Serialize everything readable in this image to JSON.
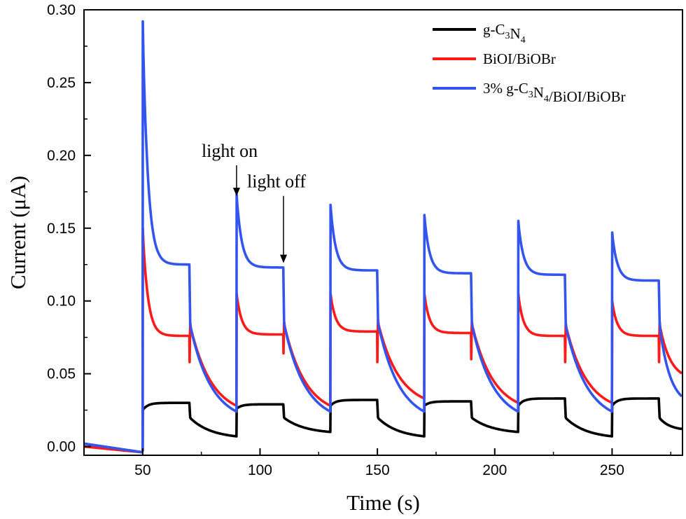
{
  "chart_data": {
    "type": "line",
    "xlabel": "Time (s)",
    "ylabel": "Current (μA)",
    "xlim": [
      25,
      280
    ],
    "ylim": [
      -0.006,
      0.3
    ],
    "xticks": [
      50,
      100,
      150,
      200,
      250
    ],
    "yticks": [
      0.0,
      0.05,
      0.1,
      0.15,
      0.2,
      0.25,
      0.3
    ],
    "ytick_labels": [
      "0.00",
      "0.05",
      "0.10",
      "0.15",
      "0.20",
      "0.25",
      "0.30"
    ],
    "legend_position": "top-right",
    "light_on_times": [
      50,
      90,
      130,
      170,
      210,
      250
    ],
    "light_off_times": [
      70,
      110,
      150,
      190,
      230,
      270
    ],
    "series": [
      {
        "name": "g-C3N4",
        "legend_parts": [
          [
            "g-C",
            ""
          ],
          [
            "3",
            "sub"
          ],
          [
            "N",
            ""
          ],
          [
            "4",
            "sub"
          ]
        ],
        "color": "#000000",
        "dark_before": 0.002,
        "jumps": [
          0.025,
          0.026,
          0.028,
          0.028,
          0.028,
          0.028
        ],
        "plateaus": [
          0.03,
          0.029,
          0.032,
          0.031,
          0.033,
          0.033
        ],
        "drops": [
          0.02,
          0.02,
          0.02,
          0.02,
          0.02,
          0.02
        ],
        "dark_ends": [
          0.007,
          0.01,
          0.007,
          0.01,
          0.007,
          0.012
        ],
        "spike_peaks": [
          0.025,
          0.026,
          0.028,
          0.028,
          0.028,
          0.028
        ],
        "off_overshoot": [
          0,
          0,
          0,
          0,
          0,
          0
        ]
      },
      {
        "name": "BiOI/BiOBr",
        "legend_parts": [
          [
            "BiOI/BiOBr",
            ""
          ]
        ],
        "color": "#ff1a1a",
        "dark_before": 0.0,
        "jumps": [
          0.1,
          0.09,
          0.09,
          0.09,
          0.09,
          0.09
        ],
        "plateaus": [
          0.076,
          0.077,
          0.079,
          0.078,
          0.076,
          0.076
        ],
        "drops": [
          0.085,
          0.086,
          0.087,
          0.086,
          0.085,
          0.086
        ],
        "dark_ends": [
          0.028,
          0.028,
          0.033,
          0.03,
          0.03,
          0.05
        ],
        "spike_peaks": [
          0.15,
          0.105,
          0.105,
          0.105,
          0.105,
          0.1
        ],
        "off_overshoot": [
          0.058,
          0.064,
          0.058,
          0.06,
          0.058,
          0.058
        ]
      },
      {
        "name": "3% g-C3N4/BiOI/BiOBr",
        "legend_parts": [
          [
            "3% g-C",
            ""
          ],
          [
            "3",
            "sub"
          ],
          [
            "N",
            ""
          ],
          [
            "4",
            "sub"
          ],
          [
            "/BiOI/BiOBr",
            ""
          ]
        ],
        "color": "#3355ee",
        "dark_before": 0.002,
        "jumps": [
          0.2,
          0.16,
          0.16,
          0.15,
          0.15,
          0.14
        ],
        "plateaus": [
          0.125,
          0.123,
          0.121,
          0.119,
          0.118,
          0.114
        ],
        "drops": [
          0.085,
          0.086,
          0.087,
          0.086,
          0.085,
          0.086
        ],
        "dark_ends": [
          0.024,
          0.024,
          0.024,
          0.024,
          0.024,
          0.034
        ],
        "spike_peaks": [
          0.292,
          0.173,
          0.166,
          0.159,
          0.155,
          0.147
        ],
        "off_overshoot": [
          0,
          0,
          0,
          0,
          0,
          0
        ]
      }
    ],
    "annotations": [
      {
        "text": "light on",
        "x": 90,
        "y": 0.172,
        "label_x": 90,
        "label_y": 0.197
      },
      {
        "text": "light off",
        "x": 110,
        "y": 0.126,
        "label_x": 110,
        "label_y": 0.176
      }
    ]
  }
}
